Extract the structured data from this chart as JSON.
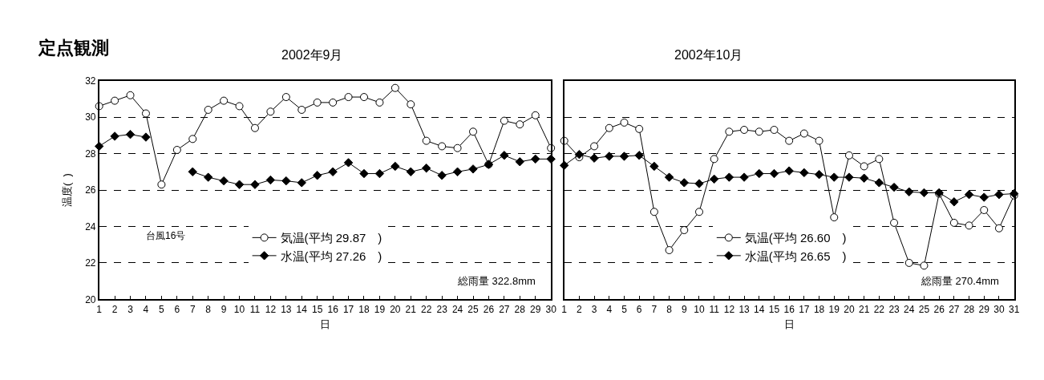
{
  "chart_data": [
    {
      "type": "line",
      "title": "2002年9月",
      "xlabel": "日",
      "ylabel": "温度(  )",
      "annotations": [
        "定点観測",
        "台風16号",
        "総雨量 322.8mm"
      ],
      "x": [
        1,
        2,
        3,
        4,
        5,
        6,
        7,
        8,
        9,
        10,
        11,
        12,
        13,
        14,
        15,
        16,
        17,
        18,
        19,
        20,
        21,
        22,
        23,
        24,
        25,
        26,
        27,
        28,
        29,
        30
      ],
      "series": [
        {
          "name": "気温(平均 29.87　)",
          "color": "#000000",
          "marker": "circle",
          "values": [
            30.6,
            30.9,
            31.2,
            30.2,
            26.3,
            28.2,
            28.8,
            30.4,
            30.9,
            30.6,
            29.4,
            30.3,
            31.1,
            30.4,
            30.8,
            30.8,
            31.1,
            31.1,
            30.8,
            31.6,
            30.7,
            28.7,
            28.4,
            28.3,
            29.2,
            27.4,
            29.8,
            29.6,
            30.1,
            28.3
          ]
        },
        {
          "name": "水温(平均 27.26　)",
          "color": "#000000",
          "marker": "diamond",
          "values": [
            28.4,
            28.95,
            29.05,
            28.9,
            null,
            null,
            27.0,
            26.7,
            26.5,
            26.3,
            26.3,
            26.55,
            26.5,
            26.4,
            26.8,
            27.0,
            27.5,
            26.9,
            26.9,
            27.3,
            27.0,
            27.2,
            26.8,
            27.0,
            27.15,
            27.4,
            27.9,
            27.55,
            27.7,
            27.7
          ]
        }
      ],
      "xlim": [
        1,
        30
      ],
      "xticks": [
        1,
        2,
        3,
        4,
        5,
        6,
        7,
        8,
        9,
        10,
        11,
        12,
        13,
        14,
        15,
        16,
        17,
        18,
        19,
        20,
        21,
        22,
        23,
        24,
        25,
        26,
        27,
        28,
        29,
        30
      ],
      "ylim": [
        20,
        32
      ],
      "yticks": [
        20,
        22,
        24,
        26,
        28,
        30,
        32
      ],
      "grid": "y",
      "legend": "bottom",
      "line_style": "solid"
    },
    {
      "type": "line",
      "title": "2002年10月",
      "xlabel": "日",
      "annotations": [
        "総雨量 270.4mm"
      ],
      "x": [
        1,
        2,
        3,
        4,
        5,
        6,
        7,
        8,
        9,
        10,
        11,
        12,
        13,
        14,
        15,
        16,
        17,
        18,
        19,
        20,
        21,
        22,
        23,
        24,
        25,
        26,
        27,
        28,
        29,
        30,
        31
      ],
      "series": [
        {
          "name": "気温(平均 26.60　)",
          "color": "#000000",
          "marker": "circle",
          "values": [
            28.7,
            27.8,
            28.4,
            29.4,
            29.7,
            29.35,
            24.8,
            22.7,
            23.8,
            24.8,
            27.7,
            29.2,
            29.3,
            29.2,
            29.3,
            28.7,
            29.1,
            28.7,
            24.5,
            27.9,
            27.3,
            27.7,
            24.2,
            22.0,
            21.85,
            25.8,
            24.2,
            24.05,
            24.9,
            23.9,
            25.7
          ]
        },
        {
          "name": "水温(平均 26.65　)",
          "color": "#000000",
          "marker": "diamond",
          "values": [
            27.35,
            27.95,
            27.75,
            27.85,
            27.85,
            27.9,
            27.3,
            26.7,
            26.4,
            26.35,
            26.6,
            26.7,
            26.7,
            26.9,
            26.9,
            27.05,
            26.95,
            26.85,
            26.7,
            26.7,
            26.65,
            26.4,
            26.15,
            25.9,
            25.85,
            25.85,
            25.35,
            25.75,
            25.6,
            25.75,
            25.8
          ]
        }
      ],
      "xlim": [
        1,
        31
      ],
      "xticks": [
        1,
        2,
        3,
        4,
        5,
        6,
        7,
        8,
        9,
        10,
        11,
        12,
        13,
        14,
        15,
        16,
        17,
        18,
        19,
        20,
        21,
        22,
        23,
        24,
        25,
        26,
        27,
        28,
        29,
        30,
        31
      ],
      "ylim": [
        20,
        32
      ],
      "yticks": [
        20,
        22,
        24,
        26,
        28,
        30,
        32
      ],
      "grid": "y",
      "legend": "bottom",
      "line_style": "solid",
      "tick_labels": "x"
    }
  ]
}
